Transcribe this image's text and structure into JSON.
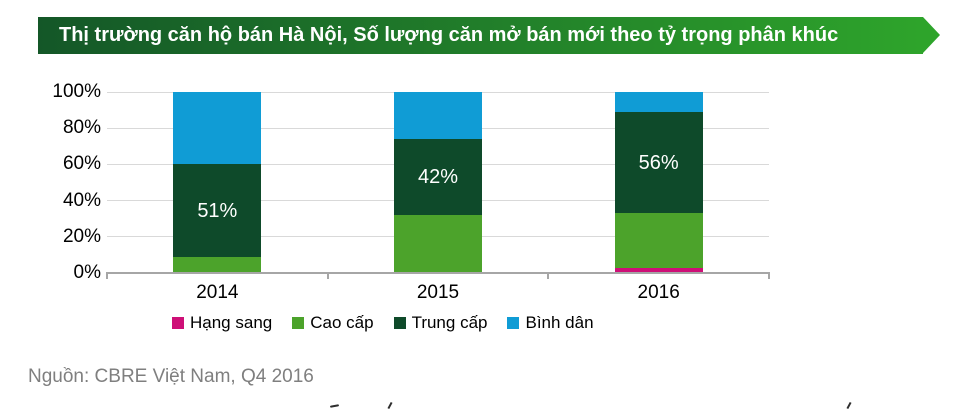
{
  "header": {
    "title": "Thị trường căn hộ bán Hà Nội, Số lượng căn mở bán mới theo tỷ trọng phân khúc"
  },
  "chart_data": {
    "type": "bar",
    "stacked": true,
    "title": "Thị trường căn hộ bán Hà Nội, Số lượng căn mở bán mới theo tỷ trọng phân khúc",
    "categories": [
      "2014",
      "2015",
      "2016"
    ],
    "series": [
      {
        "name": "Hạng sang",
        "color": "#ce0f77",
        "values": [
          0,
          0,
          3
        ]
      },
      {
        "name": "Cao cấp",
        "color": "#4ca32b",
        "values": [
          9,
          32,
          30
        ]
      },
      {
        "name": "Trung cấp",
        "color": "#0e4a2a",
        "values": [
          51,
          42,
          56
        ]
      },
      {
        "name": "Bình dân",
        "color": "#109cd5",
        "values": [
          40,
          26,
          11
        ]
      }
    ],
    "data_labels": {
      "series": "Trung cấp",
      "texts": [
        "51%",
        "42%",
        "56%"
      ]
    },
    "xlabel": "",
    "ylabel": "",
    "ylim": [
      0,
      100
    ],
    "yticks": [
      "0%",
      "20%",
      "40%",
      "60%",
      "80%",
      "100%"
    ],
    "grid": true,
    "legend_position": "bottom"
  },
  "footer": {
    "source": "Nguồn: CBRE Việt Nam, Q4 2016"
  },
  "colors": {
    "banner_gradient_left": "#145728",
    "banner_gradient_right": "#2ea42b",
    "grid": "#d9d9d9",
    "axis": "#a6a6a6",
    "bar_label_text": "#ffffff",
    "tick_text": "#000000",
    "source_text": "#7f7f7f"
  }
}
